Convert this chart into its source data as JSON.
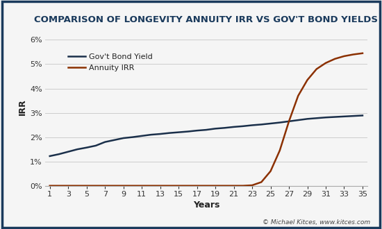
{
  "title": "COMPARISON OF LONGEVITY ANNUITY IRR VS GOV'T BOND YIELDS",
  "xlabel": "Years",
  "ylabel": "IRR",
  "background_color": "#f5f5f5",
  "border_color": "#1a3a5c",
  "title_color": "#1a3a5c",
  "gov_bond_color": "#1a2f4a",
  "annuity_color": "#8b3000",
  "legend_labels": [
    "Gov't Bond Yield",
    "Annuity IRR"
  ],
  "footnote": "© Michael Kitces, www.kitces.com",
  "ylim": [
    0.0,
    0.065
  ],
  "yticks": [
    0.0,
    0.01,
    0.02,
    0.03,
    0.04,
    0.05,
    0.06
  ],
  "xticks": [
    1,
    3,
    5,
    7,
    9,
    11,
    13,
    15,
    17,
    19,
    21,
    23,
    25,
    27,
    29,
    31,
    33,
    35
  ],
  "gov_bond_x": [
    1,
    2,
    3,
    4,
    5,
    6,
    7,
    8,
    9,
    10,
    11,
    12,
    13,
    14,
    15,
    16,
    17,
    18,
    19,
    20,
    21,
    22,
    23,
    24,
    25,
    26,
    27,
    28,
    29,
    30,
    31,
    32,
    33,
    34,
    35
  ],
  "gov_bond_y": [
    0.0122,
    0.013,
    0.014,
    0.015,
    0.0157,
    0.0165,
    0.018,
    0.0188,
    0.0196,
    0.02,
    0.0205,
    0.021,
    0.0213,
    0.0217,
    0.022,
    0.0223,
    0.0227,
    0.023,
    0.0235,
    0.0238,
    0.0242,
    0.0245,
    0.0249,
    0.0252,
    0.0256,
    0.026,
    0.0265,
    0.027,
    0.0275,
    0.0278,
    0.0281,
    0.0283,
    0.0285,
    0.0287,
    0.0289
  ],
  "annuity_x": [
    1,
    2,
    3,
    4,
    5,
    6,
    7,
    8,
    9,
    10,
    11,
    12,
    13,
    14,
    15,
    16,
    17,
    18,
    19,
    20,
    21,
    22,
    23,
    24,
    25,
    26,
    27,
    28,
    29,
    30,
    31,
    32,
    33,
    34,
    35
  ],
  "annuity_y": [
    0.0,
    0.0,
    0.0,
    0.0,
    0.0,
    0.0,
    0.0,
    0.0,
    0.0,
    0.0,
    0.0,
    0.0,
    0.0,
    0.0,
    0.0,
    0.0,
    0.0,
    0.0,
    0.0,
    0.0,
    0.0,
    0.0,
    0.0002,
    0.0015,
    0.006,
    0.0145,
    0.0265,
    0.037,
    0.0435,
    0.048,
    0.0505,
    0.0522,
    0.0533,
    0.054,
    0.0545
  ]
}
